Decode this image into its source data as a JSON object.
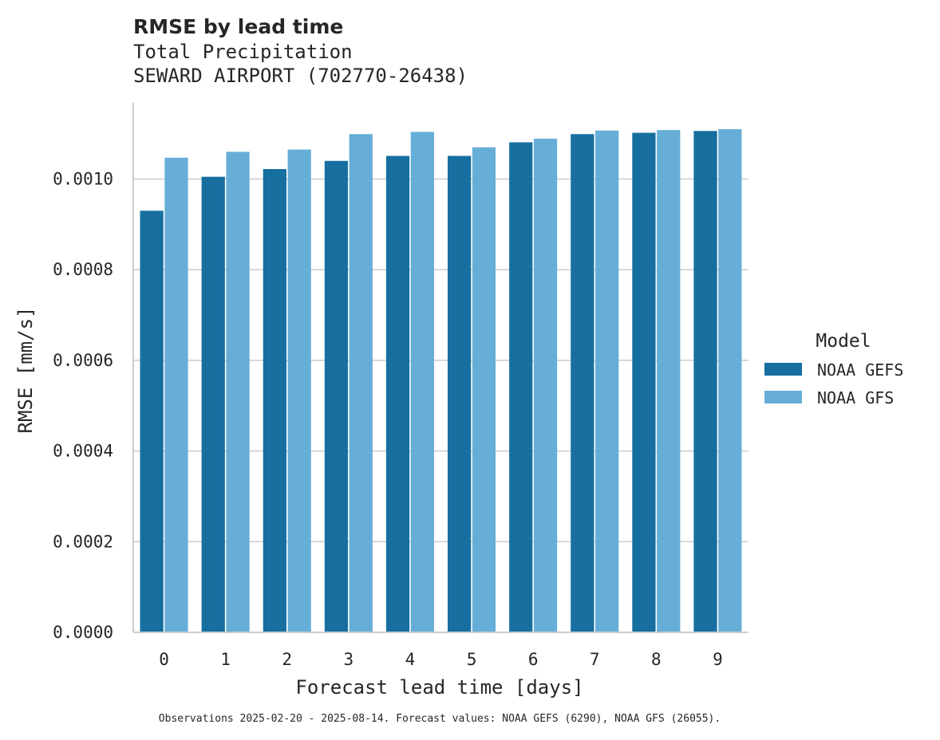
{
  "chart_data": {
    "type": "bar",
    "title": "RMSE by lead time",
    "subtitle_lines": [
      "Total Precipitation",
      "SEWARD AIRPORT (702770-26438)"
    ],
    "xlabel": "Forecast lead time [days]",
    "ylabel": "RMSE [mm/s]",
    "categories": [
      "0",
      "1",
      "2",
      "3",
      "4",
      "5",
      "6",
      "7",
      "8",
      "9"
    ],
    "ylim": [
      0,
      0.001168
    ],
    "yticks": [
      0.0,
      0.0002,
      0.0004,
      0.0006,
      0.0008,
      0.001
    ],
    "ytick_labels": [
      "0.0000",
      "0.0002",
      "0.0004",
      "0.0006",
      "0.0008",
      "0.0010"
    ],
    "grid": "y",
    "legend": {
      "title": "Model",
      "position": "right"
    },
    "series": [
      {
        "name": "NOAA GEFS",
        "color": "#176fa0",
        "values": [
          0.00093,
          0.001005,
          0.001022,
          0.00104,
          0.001051,
          0.001051,
          0.001081,
          0.001099,
          0.001102,
          0.001106
        ]
      },
      {
        "name": "NOAA GFS",
        "color": "#66aed7",
        "values": [
          0.001047,
          0.00106,
          0.001065,
          0.001099,
          0.001104,
          0.00107,
          0.001089,
          0.001107,
          0.001108,
          0.00111
        ]
      }
    ],
    "footnote": "Observations 2025-02-20 - 2025-08-14. Forecast values: NOAA GEFS (6290), NOAA GFS (26055)."
  }
}
